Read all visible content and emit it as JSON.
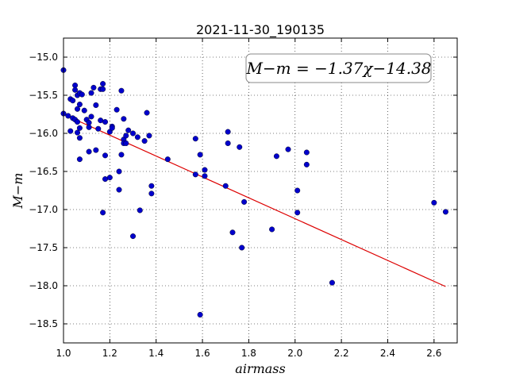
{
  "chart_data": {
    "type": "scatter",
    "title": "2021-11-30_190135",
    "xlabel": "airmass",
    "ylabel": "M−m",
    "xlim": [
      1.0,
      2.7
    ],
    "ylim": [
      -18.75,
      -14.75
    ],
    "x_ticks": [
      1.0,
      1.2,
      1.4,
      1.6,
      1.8,
      2.0,
      2.2,
      2.4,
      2.6
    ],
    "y_ticks": [
      -15.0,
      -15.5,
      -16.0,
      -16.5,
      -17.0,
      -17.5,
      -18.0,
      -18.5
    ],
    "x_tick_labels": [
      "1.0",
      "1.2",
      "1.4",
      "1.6",
      "1.8",
      "2.0",
      "2.2",
      "2.4",
      "2.6"
    ],
    "y_tick_labels": [
      "−15.0",
      "−15.5",
      "−16.0",
      "−16.5",
      "−17.0",
      "−17.5",
      "−18.0",
      "−18.5"
    ],
    "grid": true,
    "point_color": "#0000cc",
    "fit_color": "#dd0000",
    "annotation": "M−m = −1.37χ−14.38",
    "fit": {
      "slope": -1.37,
      "intercept": -14.38,
      "x_start": 1.0,
      "x_end": 2.65
    },
    "points": [
      [
        1.0,
        -15.17
      ],
      [
        1.0,
        -15.74
      ],
      [
        1.02,
        -15.77
      ],
      [
        1.03,
        -15.55
      ],
      [
        1.04,
        -15.57
      ],
      [
        1.03,
        -15.97
      ],
      [
        1.04,
        -15.8
      ],
      [
        1.05,
        -15.37
      ],
      [
        1.05,
        -15.43
      ],
      [
        1.05,
        -15.82
      ],
      [
        1.06,
        -15.5
      ],
      [
        1.06,
        -15.68
      ],
      [
        1.06,
        -15.85
      ],
      [
        1.06,
        -15.99
      ],
      [
        1.07,
        -15.47
      ],
      [
        1.07,
        -15.62
      ],
      [
        1.07,
        -15.93
      ],
      [
        1.07,
        -16.06
      ],
      [
        1.07,
        -16.34
      ],
      [
        1.08,
        -15.49
      ],
      [
        1.09,
        -15.7
      ],
      [
        1.1,
        -15.82
      ],
      [
        1.11,
        -15.86
      ],
      [
        1.11,
        -15.92
      ],
      [
        1.11,
        -16.24
      ],
      [
        1.12,
        -15.47
      ],
      [
        1.12,
        -15.78
      ],
      [
        1.13,
        -15.4
      ],
      [
        1.14,
        -15.63
      ],
      [
        1.14,
        -16.22
      ],
      [
        1.15,
        -15.94
      ],
      [
        1.16,
        -15.42
      ],
      [
        1.16,
        -15.83
      ],
      [
        1.17,
        -15.35
      ],
      [
        1.17,
        -15.42
      ],
      [
        1.17,
        -17.04
      ],
      [
        1.18,
        -15.85
      ],
      [
        1.18,
        -16.29
      ],
      [
        1.18,
        -16.6
      ],
      [
        1.2,
        -16.58
      ],
      [
        1.2,
        -15.98
      ],
      [
        1.21,
        -15.91
      ],
      [
        1.21,
        -15.93
      ],
      [
        1.23,
        -15.69
      ],
      [
        1.24,
        -16.5
      ],
      [
        1.24,
        -16.74
      ],
      [
        1.25,
        -15.44
      ],
      [
        1.25,
        -16.28
      ],
      [
        1.26,
        -15.81
      ],
      [
        1.26,
        -16.08
      ],
      [
        1.26,
        -16.13
      ],
      [
        1.27,
        -16.13
      ],
      [
        1.27,
        -16.03
      ],
      [
        1.28,
        -15.96
      ],
      [
        1.3,
        -16.0
      ],
      [
        1.3,
        -17.35
      ],
      [
        1.32,
        -16.05
      ],
      [
        1.33,
        -17.01
      ],
      [
        1.35,
        -16.1
      ],
      [
        1.36,
        -15.73
      ],
      [
        1.37,
        -16.03
      ],
      [
        1.38,
        -16.69
      ],
      [
        1.38,
        -16.79
      ],
      [
        1.45,
        -16.34
      ],
      [
        1.57,
        -16.07
      ],
      [
        1.57,
        -16.54
      ],
      [
        1.59,
        -16.28
      ],
      [
        1.59,
        -18.38
      ],
      [
        1.61,
        -16.48
      ],
      [
        1.61,
        -16.56
      ],
      [
        1.7,
        -16.69
      ],
      [
        1.71,
        -15.98
      ],
      [
        1.71,
        -16.13
      ],
      [
        1.73,
        -17.3
      ],
      [
        1.76,
        -16.18
      ],
      [
        1.77,
        -17.5
      ],
      [
        1.78,
        -16.9
      ],
      [
        1.9,
        -17.26
      ],
      [
        1.92,
        -16.3
      ],
      [
        1.97,
        -16.21
      ],
      [
        2.01,
        -16.75
      ],
      [
        2.01,
        -17.04
      ],
      [
        2.05,
        -16.25
      ],
      [
        2.05,
        -16.41
      ],
      [
        2.16,
        -17.96
      ],
      [
        2.6,
        -16.91
      ],
      [
        2.65,
        -17.03
      ]
    ]
  }
}
